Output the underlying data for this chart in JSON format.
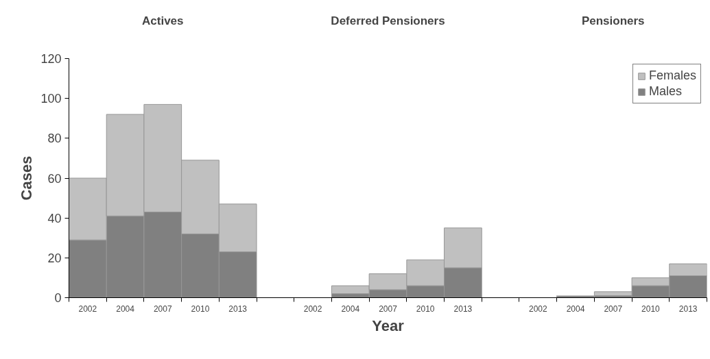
{
  "chart_data": {
    "type": "bar",
    "stacked": true,
    "xlabel": "Year",
    "ylabel": "Cases",
    "annotations": [
      "Actives",
      "Deferred Pensioners",
      "Pensioners"
    ],
    "categories": [
      "2002",
      "2004",
      "2007",
      "2010",
      "2013",
      null,
      "2002",
      "2004",
      "2007",
      "2010",
      "2013",
      null,
      "2002",
      "2004",
      "2007",
      "2010",
      "2013"
    ],
    "series": [
      {
        "name": "Males",
        "color": "#808080",
        "values": [
          29,
          41,
          43,
          32,
          23,
          null,
          0,
          2,
          4,
          6,
          15,
          null,
          0,
          1,
          1,
          6,
          11
        ]
      },
      {
        "name": "Females",
        "color": "#c0c0c0",
        "values": [
          31,
          51,
          54,
          37,
          24,
          null,
          0,
          4,
          8,
          13,
          20,
          null,
          0,
          0,
          2,
          4,
          6
        ]
      }
    ],
    "ylim": [
      0,
      120
    ],
    "yticks": [
      0,
      20,
      40,
      60,
      80,
      100,
      120
    ],
    "grid": false,
    "legend": "top right"
  }
}
